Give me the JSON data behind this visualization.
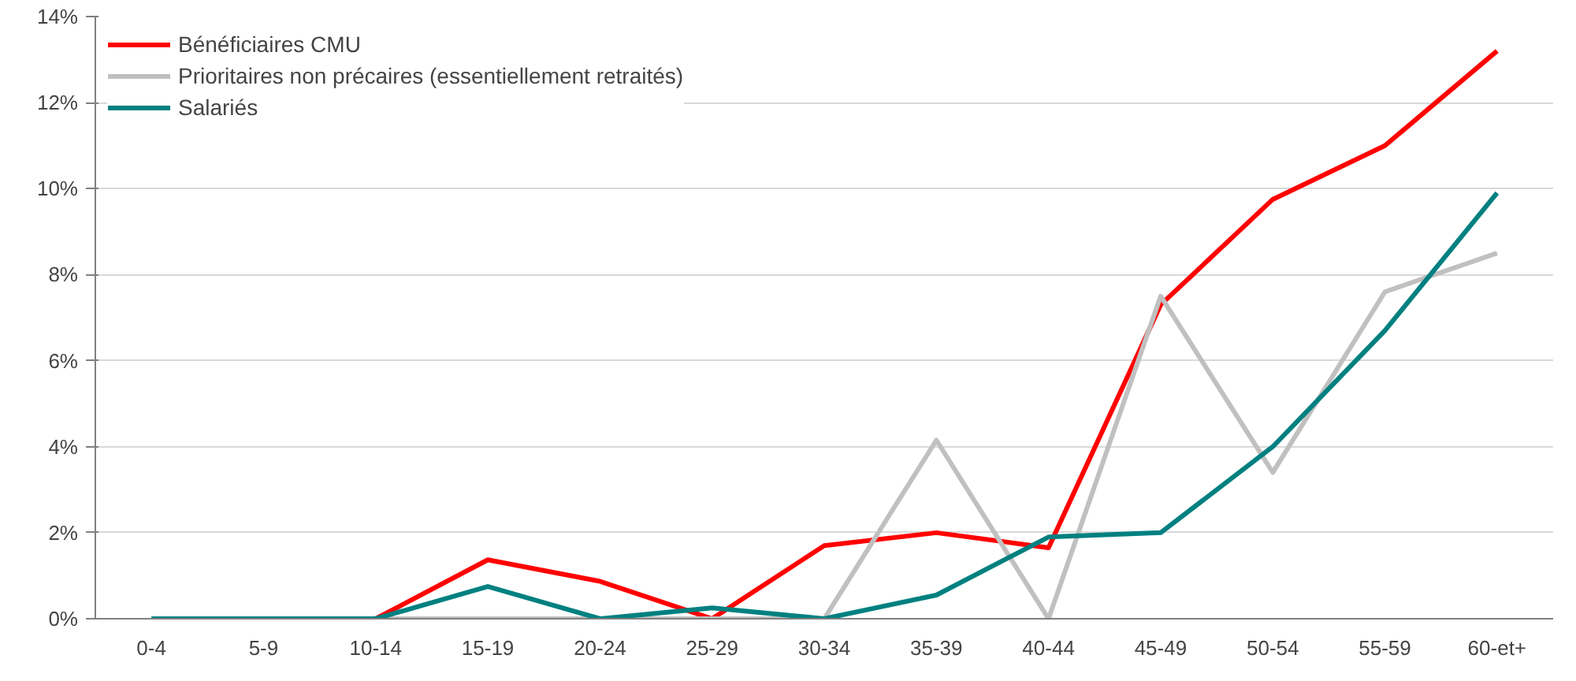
{
  "chart_data": {
    "type": "line",
    "categories": [
      "0-4",
      "5-9",
      "10-14",
      "15-19",
      "20-24",
      "25-29",
      "30-34",
      "35-39",
      "40-44",
      "45-49",
      "50-54",
      "55-59",
      "60-et+"
    ],
    "series": [
      {
        "name": "Bénéficiaires CMU",
        "color": "#ff0000",
        "values": [
          0,
          0,
          0,
          1.37,
          0.87,
          0,
          1.7,
          2.0,
          1.65,
          7.3,
          9.75,
          11.0,
          13.2
        ]
      },
      {
        "name": "Prioritaires non précaires (essentiellement retraités)",
        "color": "#c0c0c0",
        "values": [
          0,
          0,
          0,
          0,
          0,
          0,
          0,
          4.15,
          0,
          7.5,
          3.4,
          7.6,
          8.5
        ]
      },
      {
        "name": "Salariés",
        "color": "#008080",
        "values": [
          0,
          0,
          0,
          0.75,
          0,
          0.25,
          0,
          0.55,
          1.9,
          2.0,
          4.0,
          6.7,
          9.9
        ]
      }
    ],
    "ylim": [
      0,
      14
    ],
    "yticks": [
      {
        "value": 0,
        "label": "0%"
      },
      {
        "value": 2,
        "label": "2%"
      },
      {
        "value": 4,
        "label": "4%"
      },
      {
        "value": 6,
        "label": "6%"
      },
      {
        "value": 8,
        "label": "8%"
      },
      {
        "value": 10,
        "label": "10%"
      },
      {
        "value": 12,
        "label": "12%"
      },
      {
        "value": 14,
        "label": "14%"
      }
    ],
    "grid": "y",
    "legend": "top left",
    "marker": "none",
    "line_style": "solid"
  }
}
